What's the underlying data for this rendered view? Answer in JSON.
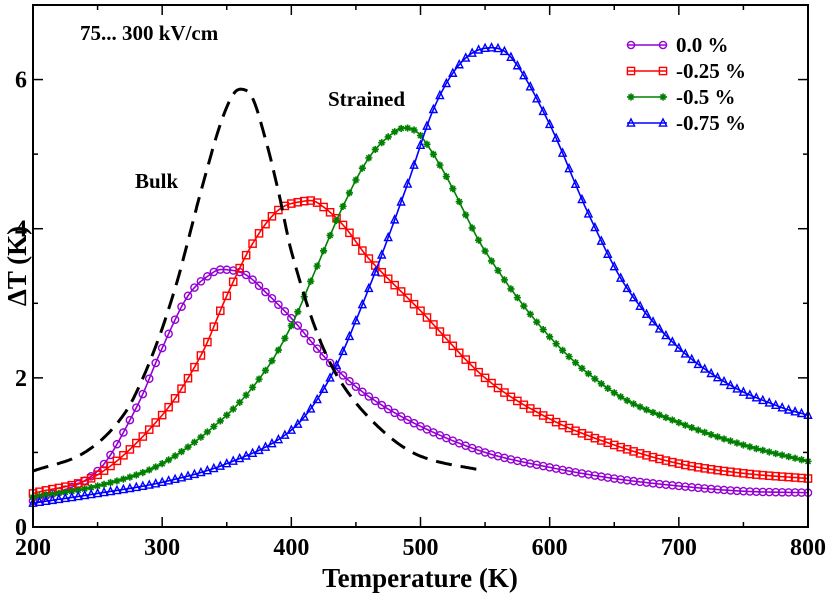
{
  "chart_data": {
    "type": "line",
    "xlabel": "Temperature (K)",
    "ylabel": "ΔT (K)",
    "xlim": [
      200,
      800
    ],
    "ylim": [
      0,
      7
    ],
    "x_ticks": [
      200,
      300,
      400,
      500,
      600,
      700,
      800
    ],
    "x_tick_labels": [
      "200",
      "300",
      "400",
      "500",
      "600",
      "700",
      "800"
    ],
    "y_ticks": [
      0,
      2,
      4,
      6
    ],
    "y_tick_labels": [
      "0",
      "2",
      "4",
      "6"
    ],
    "annotations": {
      "field_range": "75... 300 kV/cm",
      "bulk": "Bulk",
      "strained": "Strained"
    },
    "legend_position": "top-right",
    "series": [
      {
        "name": "0.0 %",
        "color": "#9400d3",
        "marker": "circle",
        "dashed": false,
        "x": [
          200,
          250,
          280,
          300,
          320,
          340,
          350,
          365,
          380,
          400,
          430,
          460,
          500,
          550,
          600,
          650,
          700,
          750,
          800
        ],
        "values": [
          0.35,
          0.75,
          1.6,
          2.4,
          3.1,
          3.42,
          3.45,
          3.38,
          3.15,
          2.8,
          2.2,
          1.75,
          1.35,
          1.0,
          0.8,
          0.65,
          0.55,
          0.48,
          0.46
        ]
      },
      {
        "name": "-0.25 %",
        "color": "#ff0000",
        "marker": "square",
        "dashed": false,
        "x": [
          200,
          250,
          300,
          330,
          350,
          370,
          390,
          410,
          420,
          440,
          460,
          500,
          550,
          600,
          650,
          700,
          750,
          800
        ],
        "values": [
          0.45,
          0.7,
          1.5,
          2.3,
          3.1,
          3.8,
          4.25,
          4.37,
          4.35,
          4.05,
          3.6,
          2.9,
          2.0,
          1.45,
          1.1,
          0.85,
          0.72,
          0.65
        ]
      },
      {
        "name": "-0.5 %",
        "color": "#008000",
        "marker": "star",
        "dashed": false,
        "x": [
          200,
          250,
          300,
          350,
          380,
          400,
          420,
          440,
          460,
          480,
          490,
          500,
          520,
          550,
          600,
          650,
          700,
          750,
          800
        ],
        "values": [
          0.4,
          0.55,
          0.85,
          1.5,
          2.1,
          2.7,
          3.5,
          4.3,
          4.95,
          5.3,
          5.35,
          5.25,
          4.7,
          3.7,
          2.55,
          1.8,
          1.4,
          1.1,
          0.88
        ]
      },
      {
        "name": "-0.75 %",
        "color": "#0000ff",
        "marker": "triangle",
        "dashed": false,
        "x": [
          200,
          250,
          300,
          350,
          400,
          430,
          460,
          490,
          510,
          530,
          550,
          570,
          600,
          630,
          660,
          700,
          740,
          780,
          800
        ],
        "values": [
          0.32,
          0.45,
          0.6,
          0.85,
          1.3,
          2.0,
          3.2,
          4.6,
          5.6,
          6.2,
          6.42,
          6.3,
          5.4,
          4.2,
          3.2,
          2.4,
          1.9,
          1.6,
          1.5
        ]
      },
      {
        "name": "Bulk",
        "color": "#000000",
        "marker": "none",
        "dashed": true,
        "in_legend": false,
        "x": [
          200,
          240,
          270,
          290,
          310,
          330,
          345,
          355,
          362,
          370,
          380,
          390,
          400,
          420,
          440,
          470,
          500,
          550
        ],
        "values": [
          0.75,
          1.0,
          1.5,
          2.2,
          3.2,
          4.5,
          5.4,
          5.8,
          5.87,
          5.75,
          5.2,
          4.5,
          3.7,
          2.6,
          1.9,
          1.3,
          0.95,
          0.75
        ]
      }
    ]
  }
}
